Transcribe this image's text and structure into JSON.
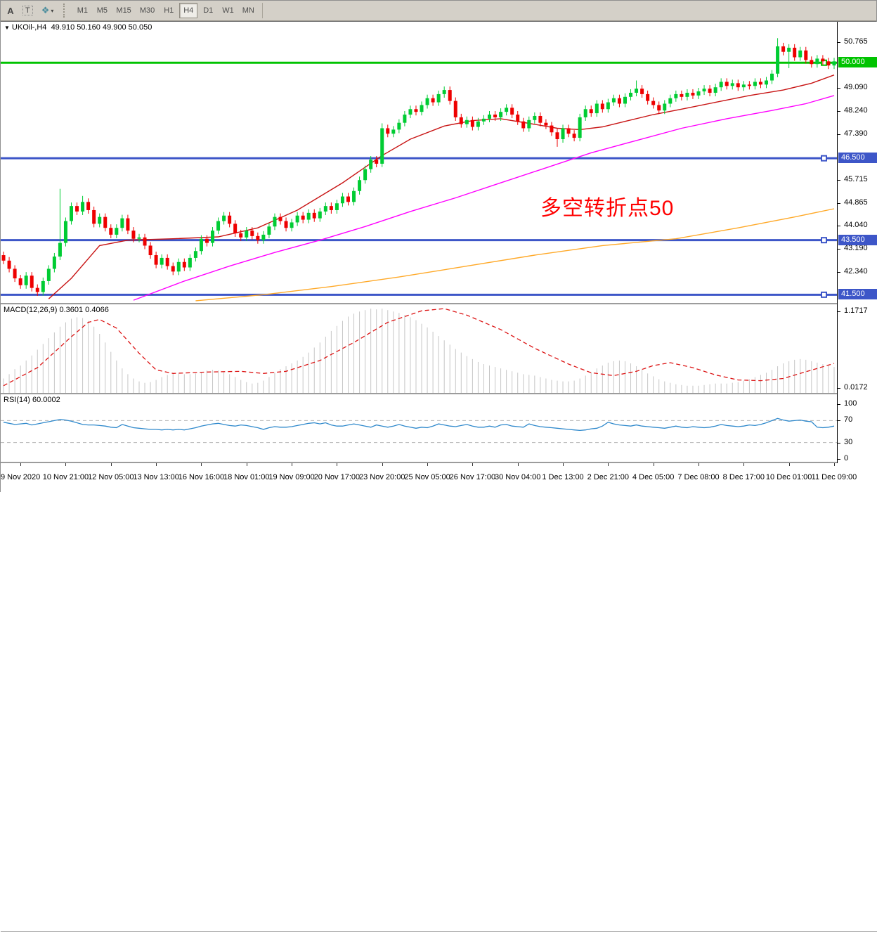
{
  "toolbar": {
    "tools": [
      {
        "name": "label-tool",
        "glyph": "A"
      },
      {
        "name": "text-tool",
        "glyph": "T"
      },
      {
        "name": "arrows-tool",
        "glyph": "❖",
        "caret": "▾"
      }
    ],
    "timeframes": [
      {
        "label": "M1",
        "active": false
      },
      {
        "label": "M5",
        "active": false
      },
      {
        "label": "M15",
        "active": false
      },
      {
        "label": "M30",
        "active": false
      },
      {
        "label": "H1",
        "active": false
      },
      {
        "label": "H4",
        "active": true
      },
      {
        "label": "D1",
        "active": false
      },
      {
        "label": "W1",
        "active": false
      },
      {
        "label": "MN",
        "active": false
      }
    ]
  },
  "chart": {
    "title": {
      "symbol": "UKOil-,H4",
      "values": "49.910 50.160 49.900 50.050",
      "open": "49.910",
      "high": "50.160",
      "low": "49.900",
      "close": "50.050"
    },
    "annotation": {
      "text": "多空转折点50",
      "color": "#FF0000"
    }
  },
  "colors": {
    "bull": "#00CC33",
    "bear": "#EE0000",
    "ma_fast": "#C81414",
    "ma_mid": "#FF00FF",
    "ma_slow": "#FFA928",
    "level_green": "#00C300",
    "level_blue": "#3D56C8",
    "macd_hist": "#C6C6C6",
    "macd_signal": "#DC1414",
    "rsi_line": "#2F89CC",
    "rsi_level": "#B4B4B4"
  },
  "chart_data": [
    {
      "type": "candlestick",
      "symbol": "UKOil-",
      "timeframe": "H4",
      "title_ohlc": {
        "open": 49.91,
        "high": 50.16,
        "low": 49.9,
        "close": 50.05
      },
      "y_range": [
        41.2,
        51.5
      ],
      "y_ticks": [
        50.765,
        49.09,
        48.24,
        47.39,
        45.715,
        44.865,
        44.04,
        43.19,
        42.34
      ],
      "levels": [
        {
          "price": 50.0,
          "color_key": "level_green",
          "label": "50.000"
        },
        {
          "price": 46.5,
          "color_key": "level_blue",
          "label": "46.500"
        },
        {
          "price": 43.5,
          "color_key": "level_blue",
          "label": "43.500"
        },
        {
          "price": 41.5,
          "color_key": "level_blue",
          "label": "41.500"
        }
      ],
      "x_labels": [
        "9 Nov 2020",
        "10 Nov 21:00",
        "12 Nov 05:00",
        "13 Nov 13:00",
        "16 Nov 16:00",
        "18 Nov 01:00",
        "19 Nov 09:00",
        "20 Nov 17:00",
        "23 Nov 20:00",
        "25 Nov 05:00",
        "26 Nov 17:00",
        "30 Nov 04:00",
        "1 Dec 13:00",
        "2 Dec 21:00",
        "4 Dec 05:00",
        "7 Dec 08:00",
        "8 Dec 17:00",
        "10 Dec 01:00",
        "11 Dec 09:00"
      ],
      "x_label_start_index": 3,
      "x_label_every": 8,
      "first_open": 42.95,
      "default_wick": 0.13,
      "closes": [
        42.75,
        42.45,
        42.1,
        41.85,
        42.2,
        41.75,
        41.6,
        42.0,
        42.45,
        42.9,
        43.4,
        44.2,
        44.75,
        44.55,
        44.9,
        44.6,
        44.1,
        44.35,
        43.95,
        43.7,
        43.95,
        44.3,
        43.85,
        43.55,
        43.6,
        43.3,
        42.95,
        42.6,
        42.85,
        42.55,
        42.35,
        42.7,
        42.5,
        42.85,
        43.1,
        43.55,
        43.4,
        43.85,
        44.2,
        44.4,
        44.1,
        43.75,
        43.6,
        43.85,
        43.65,
        43.5,
        43.7,
        44.0,
        44.35,
        44.2,
        43.95,
        44.15,
        44.4,
        44.25,
        44.5,
        44.3,
        44.55,
        44.75,
        44.6,
        44.85,
        45.1,
        44.9,
        45.3,
        45.7,
        46.1,
        46.45,
        46.3,
        47.6,
        47.4,
        47.55,
        47.8,
        48.1,
        48.3,
        48.2,
        48.45,
        48.7,
        48.55,
        48.85,
        49.0,
        48.6,
        48.0,
        47.75,
        47.9,
        47.65,
        47.85,
        47.95,
        48.1,
        48.0,
        48.2,
        48.35,
        48.1,
        47.85,
        47.6,
        47.9,
        48.05,
        47.8,
        47.7,
        47.45,
        47.2,
        47.6,
        47.4,
        47.25,
        48.0,
        48.3,
        48.15,
        48.5,
        48.3,
        48.55,
        48.7,
        48.5,
        48.75,
        48.9,
        49.05,
        48.85,
        48.6,
        48.45,
        48.25,
        48.5,
        48.7,
        48.85,
        48.75,
        48.9,
        48.8,
        48.95,
        49.05,
        48.9,
        49.1,
        49.3,
        49.15,
        49.25,
        49.1,
        49.2,
        49.15,
        49.3,
        49.2,
        49.35,
        49.6,
        50.6,
        50.4,
        50.55,
        50.2,
        50.45,
        50.1,
        49.95,
        50.15,
        50.05,
        49.9,
        50.05
      ],
      "wick_overrides": {
        "6": {
          "l": 41.46
        },
        "10": {
          "h": 45.38
        },
        "14": {
          "h": 45.12
        },
        "67": {
          "h": 47.78,
          "l": 46.18
        },
        "98": {
          "l": 46.92
        },
        "112": {
          "h": 49.35
        },
        "137": {
          "h": 50.9
        },
        "139": {
          "l": 49.8
        }
      },
      "moving_averages": [
        {
          "name": "ma-fast-red",
          "color_key": "ma_fast",
          "points": [
            [
              8,
              41.35
            ],
            [
              12,
              42.1
            ],
            [
              17,
              43.3
            ],
            [
              22,
              43.5
            ],
            [
              30,
              43.55
            ],
            [
              38,
              43.62
            ],
            [
              45,
              43.95
            ],
            [
              52,
              44.6
            ],
            [
              60,
              45.6
            ],
            [
              67,
              46.6
            ],
            [
              72,
              47.2
            ],
            [
              78,
              47.68
            ],
            [
              83,
              47.88
            ],
            [
              88,
              47.95
            ],
            [
              93,
              47.78
            ],
            [
              98,
              47.6
            ],
            [
              102,
              47.55
            ],
            [
              106,
              47.65
            ],
            [
              110,
              47.85
            ],
            [
              115,
              48.1
            ],
            [
              120,
              48.3
            ],
            [
              126,
              48.55
            ],
            [
              132,
              48.8
            ],
            [
              138,
              49.0
            ],
            [
              143,
              49.25
            ],
            [
              147,
              49.55
            ]
          ]
        },
        {
          "name": "ma-mid-magenta",
          "color_key": "ma_mid",
          "points": [
            [
              23,
              41.3
            ],
            [
              32,
              42.0
            ],
            [
              40,
              42.55
            ],
            [
              48,
              43.05
            ],
            [
              56,
              43.5
            ],
            [
              64,
              44.0
            ],
            [
              72,
              44.55
            ],
            [
              80,
              45.05
            ],
            [
              88,
              45.6
            ],
            [
              96,
              46.15
            ],
            [
              104,
              46.7
            ],
            [
              112,
              47.15
            ],
            [
              120,
              47.6
            ],
            [
              128,
              47.95
            ],
            [
              136,
              48.25
            ],
            [
              142,
              48.5
            ],
            [
              147,
              48.8
            ]
          ]
        },
        {
          "name": "ma-slow-orange",
          "color_key": "ma_slow",
          "points": [
            [
              34,
              41.28
            ],
            [
              46,
              41.5
            ],
            [
              58,
              41.8
            ],
            [
              70,
              42.15
            ],
            [
              82,
              42.55
            ],
            [
              94,
              42.95
            ],
            [
              106,
              43.3
            ],
            [
              119,
              43.55
            ],
            [
              130,
              43.95
            ],
            [
              140,
              44.35
            ],
            [
              147,
              44.65
            ]
          ]
        }
      ]
    },
    {
      "type": "bar",
      "name": "MACD",
      "label_full": "MACD(12,26,9) 0.3601 0.4066",
      "main_value": 0.3601,
      "signal_value": 0.4066,
      "y_range": [
        0,
        1.23
      ],
      "y_tick_top": "1.1717",
      "y_tick_bottom": "0.0172",
      "histogram": [
        0.2,
        0.26,
        0.33,
        0.38,
        0.45,
        0.52,
        0.6,
        0.68,
        0.76,
        0.84,
        0.92,
        0.98,
        1.03,
        1.05,
        1.04,
        1.0,
        0.92,
        0.82,
        0.7,
        0.57,
        0.45,
        0.34,
        0.26,
        0.2,
        0.16,
        0.14,
        0.15,
        0.18,
        0.22,
        0.25,
        0.27,
        0.27,
        0.26,
        0.26,
        0.27,
        0.29,
        0.31,
        0.32,
        0.31,
        0.29,
        0.26,
        0.22,
        0.18,
        0.15,
        0.13,
        0.14,
        0.17,
        0.22,
        0.28,
        0.33,
        0.37,
        0.41,
        0.45,
        0.5,
        0.56,
        0.63,
        0.7,
        0.78,
        0.86,
        0.93,
        1.0,
        1.06,
        1.1,
        1.13,
        1.15,
        1.17,
        1.16,
        1.17,
        1.15,
        1.13,
        1.11,
        1.08,
        1.05,
        1.01,
        0.96,
        0.91,
        0.85,
        0.79,
        0.73,
        0.67,
        0.61,
        0.56,
        0.51,
        0.47,
        0.43,
        0.4,
        0.38,
        0.36,
        0.34,
        0.32,
        0.3,
        0.28,
        0.26,
        0.25,
        0.24,
        0.22,
        0.2,
        0.18,
        0.17,
        0.16,
        0.16,
        0.17,
        0.2,
        0.24,
        0.29,
        0.34,
        0.38,
        0.42,
        0.44,
        0.45,
        0.44,
        0.41,
        0.37,
        0.32,
        0.27,
        0.23,
        0.19,
        0.16,
        0.14,
        0.12,
        0.11,
        0.1,
        0.1,
        0.1,
        0.11,
        0.12,
        0.13,
        0.13,
        0.13,
        0.14,
        0.15,
        0.17,
        0.19,
        0.22,
        0.25,
        0.28,
        0.32,
        0.37,
        0.41,
        0.44,
        0.46,
        0.47,
        0.46,
        0.44,
        0.42,
        0.4,
        0.38,
        0.36
      ],
      "signal_points": [
        [
          0,
          0.1
        ],
        [
          6,
          0.35
        ],
        [
          12,
          0.78
        ],
        [
          15,
          0.98
        ],
        [
          17,
          1.02
        ],
        [
          20,
          0.9
        ],
        [
          24,
          0.55
        ],
        [
          27,
          0.32
        ],
        [
          30,
          0.27
        ],
        [
          36,
          0.29
        ],
        [
          42,
          0.3
        ],
        [
          46,
          0.27
        ],
        [
          50,
          0.3
        ],
        [
          56,
          0.45
        ],
        [
          62,
          0.7
        ],
        [
          68,
          0.98
        ],
        [
          74,
          1.14
        ],
        [
          78,
          1.17
        ],
        [
          82,
          1.08
        ],
        [
          88,
          0.88
        ],
        [
          94,
          0.62
        ],
        [
          100,
          0.4
        ],
        [
          104,
          0.28
        ],
        [
          108,
          0.24
        ],
        [
          112,
          0.3
        ],
        [
          115,
          0.38
        ],
        [
          118,
          0.42
        ],
        [
          122,
          0.35
        ],
        [
          126,
          0.25
        ],
        [
          130,
          0.18
        ],
        [
          134,
          0.17
        ],
        [
          138,
          0.2
        ],
        [
          141,
          0.27
        ],
        [
          144,
          0.34
        ],
        [
          147,
          0.41
        ]
      ]
    },
    {
      "type": "line",
      "name": "RSI",
      "label_full": "RSI(14) 60.0002",
      "value": 60.0002,
      "y_range": [
        0,
        100
      ],
      "y_ticks": [
        100,
        70,
        30,
        0
      ],
      "dashed_levels": [
        70,
        30
      ],
      "values": [
        67,
        65,
        63,
        64,
        65,
        62,
        64,
        66,
        68,
        70,
        72,
        71,
        69,
        66,
        63,
        62,
        62,
        61,
        60,
        58,
        57,
        63,
        60,
        57,
        56,
        55,
        54,
        54,
        53,
        54,
        53,
        54,
        53,
        55,
        57,
        60,
        62,
        64,
        65,
        63,
        61,
        60,
        62,
        61,
        59,
        57,
        54,
        57,
        59,
        58,
        58,
        59,
        61,
        63,
        65,
        66,
        64,
        66,
        62,
        60,
        60,
        62,
        64,
        62,
        60,
        58,
        62,
        60,
        58,
        60,
        63,
        60,
        58,
        56,
        58,
        57,
        60,
        64,
        62,
        60,
        59,
        61,
        63,
        60,
        58,
        58,
        60,
        58,
        62,
        63,
        60,
        59,
        58,
        64,
        61,
        59,
        58,
        57,
        56,
        55,
        54,
        53,
        52,
        53,
        55,
        56,
        60,
        67,
        64,
        62,
        61,
        60,
        62,
        60,
        59,
        58,
        57,
        56,
        58,
        60,
        58,
        57,
        59,
        58,
        57,
        58,
        60,
        63,
        61,
        60,
        59,
        60,
        62,
        61,
        63,
        66,
        70,
        74,
        71,
        69,
        70,
        71,
        69,
        68,
        58,
        57,
        58,
        60
      ]
    }
  ]
}
